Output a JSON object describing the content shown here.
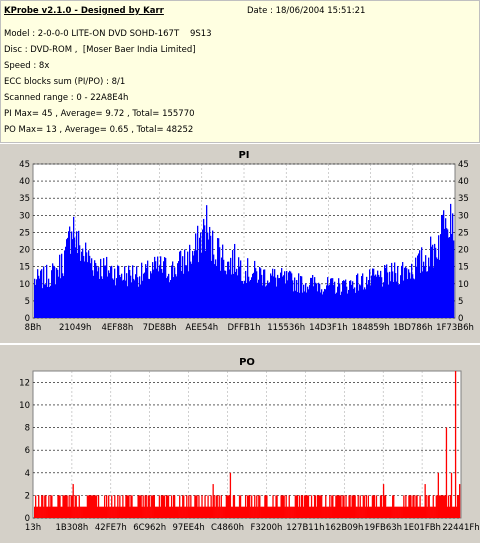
{
  "header": {
    "title": "KProbe v2.1.0 - Designed by Karr",
    "date": "Date : 18/06/2004 15:51:21",
    "model": "Model : 2-0-0-0 LITE-ON DVD SOHD-167T    9S13",
    "disc": "Disc : DVD-ROM ,  [Moser Baer India Limited]",
    "speed": "Speed : 8x",
    "ecc": "ECC blocks sum (PI/PO) : 8/1",
    "range": "Scanned range : 0 - 22A8E4h",
    "pi_stats": "PI Max= 45 , Average= 9.72 , Total= 155770",
    "po_stats": "PO Max= 13 , Average= 0.65 , Total= 48252"
  },
  "colors": {
    "pi": "#0000ff",
    "po": "#ff0000",
    "panel": "#d4d0c8",
    "info_bg": "#ffffe1"
  },
  "chart_data": [
    {
      "type": "area",
      "title": "PI",
      "xlabel": "",
      "ylabel": "",
      "ylim": [
        0,
        45
      ],
      "yticks": [
        0,
        5,
        10,
        15,
        20,
        25,
        30,
        35,
        40,
        45
      ],
      "xticks": [
        "8Bh",
        "21049h",
        "4EF88h",
        "7DE8Bh",
        "AEE54h",
        "DFFB1h",
        "115536h",
        "14D3F1h",
        "184859h",
        "1BD786h",
        "1F73B6h"
      ],
      "x_range_lba": [
        "0",
        "22A8E4h"
      ],
      "grid": true,
      "series": [
        {
          "envelope_anchors": [
            [
              0,
              14
            ],
            [
              2,
              15
            ],
            [
              5,
              17
            ],
            [
              7,
              22
            ],
            [
              8,
              26
            ],
            [
              9,
              38
            ],
            [
              10,
              28
            ],
            [
              12,
              24
            ],
            [
              14,
              21
            ],
            [
              16,
              19
            ],
            [
              18,
              18
            ],
            [
              20,
              17
            ],
            [
              22,
              16
            ],
            [
              24,
              17
            ],
            [
              26,
              16
            ],
            [
              28,
              18
            ],
            [
              30,
              19
            ],
            [
              33,
              18
            ],
            [
              36,
              22
            ],
            [
              38,
              24
            ],
            [
              40,
              31
            ],
            [
              41,
              35
            ],
            [
              42,
              27
            ],
            [
              44,
              26
            ],
            [
              46,
              20
            ],
            [
              48,
              22
            ],
            [
              50,
              18
            ],
            [
              52,
              17
            ],
            [
              55,
              16
            ],
            [
              58,
              15
            ],
            [
              61,
              14
            ],
            [
              64,
              13
            ],
            [
              67,
              13
            ],
            [
              70,
              12
            ],
            [
              73,
              12
            ],
            [
              76,
              13
            ],
            [
              79,
              14
            ],
            [
              82,
              15
            ],
            [
              85,
              16
            ],
            [
              88,
              18
            ],
            [
              91,
              19
            ],
            [
              93,
              22
            ],
            [
              95,
              25
            ],
            [
              96,
              28
            ],
            [
              97,
              30
            ],
            [
              98,
              45
            ],
            [
              99,
              42
            ],
            [
              100,
              40
            ]
          ],
          "max": 45,
          "average": 9.72
        }
      ]
    },
    {
      "type": "bar",
      "title": "PO",
      "xlabel": "",
      "ylabel": "",
      "ylim": [
        0,
        13
      ],
      "yticks": [
        0,
        2,
        4,
        6,
        8,
        10,
        12
      ],
      "xticks": [
        "13h",
        "1B308h",
        "42FE7h",
        "6C962h",
        "97EE4h",
        "C4860h",
        "F3200h",
        "127B11h",
        "162B09h",
        "19FB63h",
        "1E01FBh",
        "22441Fh"
      ],
      "grid": true,
      "series": [
        {
          "baseline": 1,
          "common_spikes": 2,
          "spikes": [
            [
              4,
              2
            ],
            [
              9,
              3
            ],
            [
              15,
              2
            ],
            [
              22,
              2
            ],
            [
              30,
              2
            ],
            [
              38,
              2
            ],
            [
              42,
              3
            ],
            [
              46,
              4
            ],
            [
              53,
              2
            ],
            [
              60,
              2
            ],
            [
              67,
              2
            ],
            [
              75,
              2
            ],
            [
              82,
              3
            ],
            [
              88,
              2
            ],
            [
              92,
              3
            ],
            [
              95,
              4
            ],
            [
              97,
              8
            ],
            [
              98,
              4
            ],
            [
              99,
              13
            ],
            [
              100,
              3
            ]
          ],
          "max": 13,
          "average": 0.65
        }
      ]
    }
  ]
}
